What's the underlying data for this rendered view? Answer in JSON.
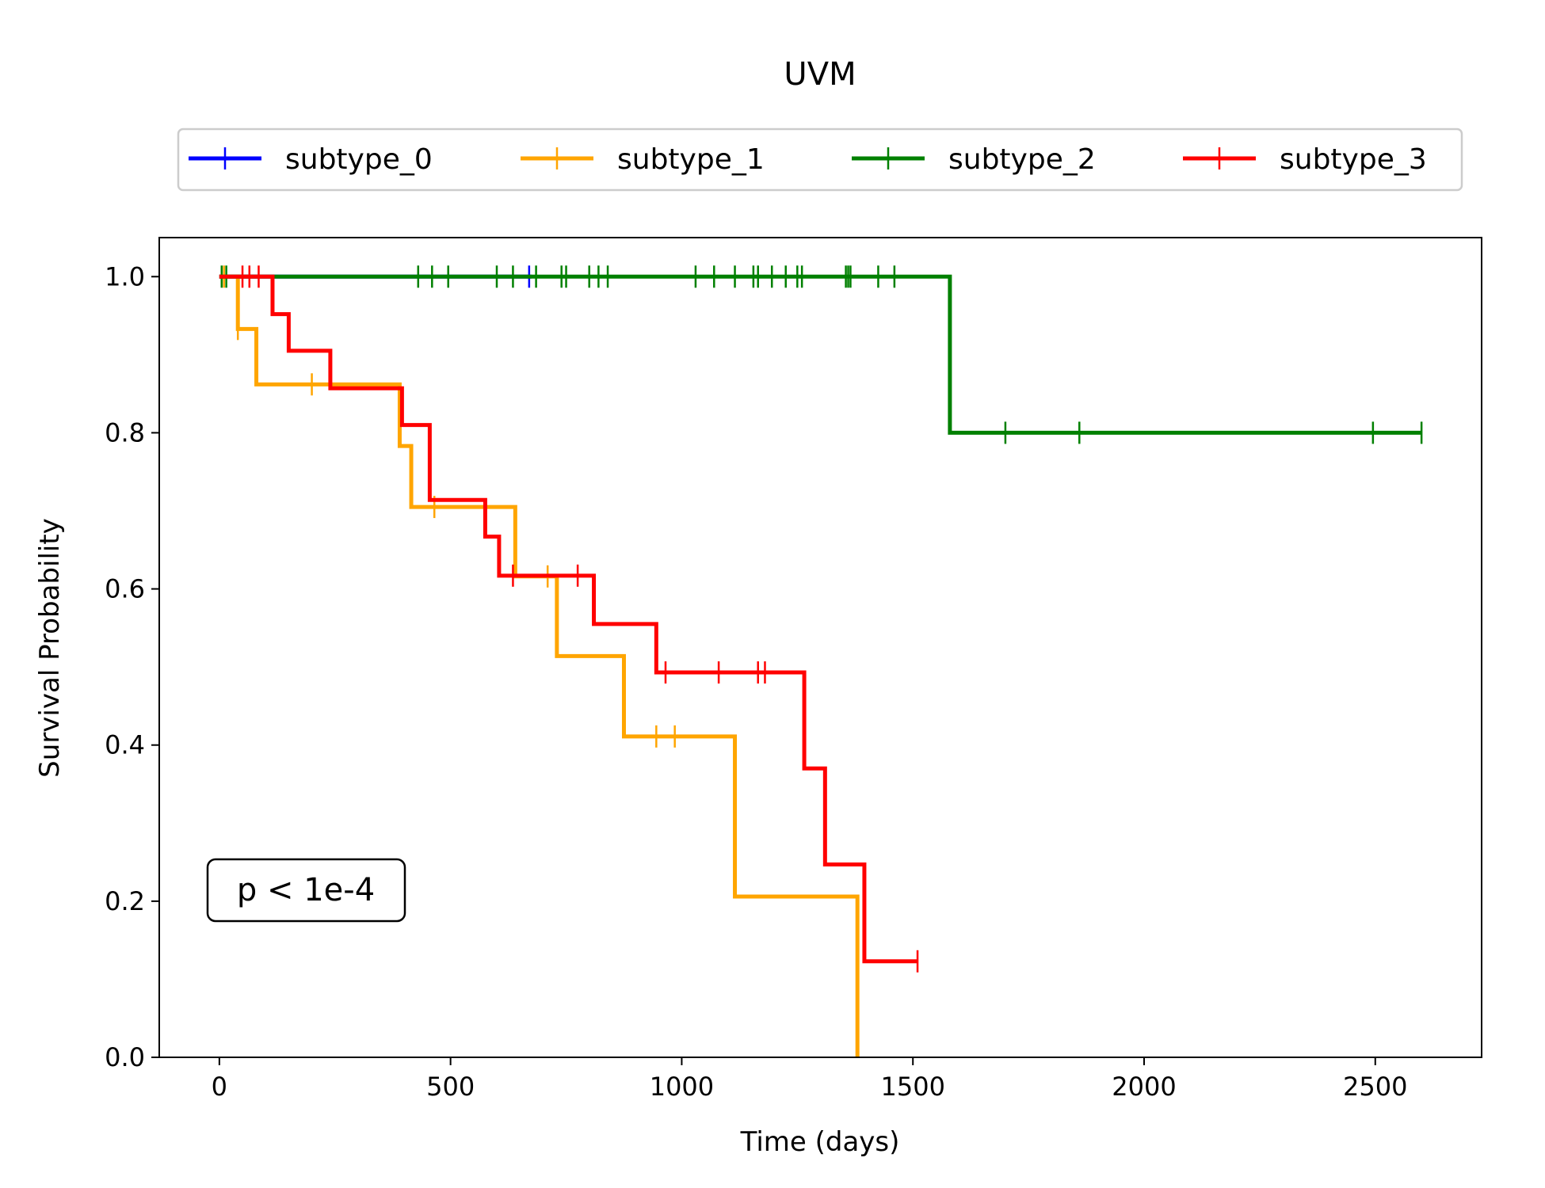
{
  "chart_data": {
    "type": "line",
    "subtype": "kaplan-meier step",
    "title": "UVM",
    "xlabel": "Time (days)",
    "ylabel": "Survival Probability",
    "xlim": [
      -130,
      2730
    ],
    "ylim": [
      0,
      1.05
    ],
    "xticks": [
      0,
      500,
      1000,
      1500,
      2000,
      2500
    ],
    "yticks": [
      0.0,
      0.2,
      0.4,
      0.6,
      0.8,
      1.0
    ],
    "xtick_labels": [
      "0",
      "500",
      "1000",
      "1500",
      "2000",
      "2500"
    ],
    "ytick_labels": [
      "0.0",
      "0.2",
      "0.4",
      "0.6",
      "0.8",
      "1.0"
    ],
    "grid": false,
    "legend_position": "top-center",
    "annotation": "p < 1e-4",
    "series": [
      {
        "name": "subtype_0",
        "color": "#0000ff",
        "steps": [
          [
            0,
            1.0
          ],
          [
            675,
            1.0
          ]
        ],
        "censored": [
          [
            670,
            1.0
          ]
        ]
      },
      {
        "name": "subtype_1",
        "color": "#ffa500",
        "steps": [
          [
            0,
            1.0
          ],
          [
            40,
            0.933
          ],
          [
            80,
            0.862
          ],
          [
            390,
            0.783
          ],
          [
            415,
            0.705
          ],
          [
            640,
            0.616
          ],
          [
            730,
            0.514
          ],
          [
            875,
            0.411
          ],
          [
            1115,
            0.206
          ],
          [
            1380,
            0.0
          ]
        ],
        "censored": [
          [
            10,
            1.0
          ],
          [
            40,
            0.933
          ],
          [
            200,
            0.862
          ],
          [
            465,
            0.705
          ],
          [
            710,
            0.616
          ],
          [
            945,
            0.411
          ],
          [
            985,
            0.411
          ]
        ]
      },
      {
        "name": "subtype_2",
        "color": "#008000",
        "steps": [
          [
            0,
            1.0
          ],
          [
            1580,
            0.8
          ],
          [
            2600,
            0.8
          ]
        ],
        "censored": [
          [
            5,
            1.0
          ],
          [
            15,
            1.0
          ],
          [
            430,
            1.0
          ],
          [
            460,
            1.0
          ],
          [
            495,
            1.0
          ],
          [
            600,
            1.0
          ],
          [
            635,
            1.0
          ],
          [
            685,
            1.0
          ],
          [
            740,
            1.0
          ],
          [
            750,
            1.0
          ],
          [
            800,
            1.0
          ],
          [
            820,
            1.0
          ],
          [
            840,
            1.0
          ],
          [
            1030,
            1.0
          ],
          [
            1070,
            1.0
          ],
          [
            1115,
            1.0
          ],
          [
            1155,
            1.0
          ],
          [
            1165,
            1.0
          ],
          [
            1195,
            1.0
          ],
          [
            1225,
            1.0
          ],
          [
            1250,
            1.0
          ],
          [
            1260,
            1.0
          ],
          [
            1355,
            1.0
          ],
          [
            1360,
            1.0
          ],
          [
            1365,
            1.0
          ],
          [
            1425,
            1.0
          ],
          [
            1460,
            1.0
          ],
          [
            1700,
            0.8
          ],
          [
            1860,
            0.8
          ],
          [
            2495,
            0.8
          ],
          [
            2600,
            0.8
          ]
        ],
        "end_x": 2600
      },
      {
        "name": "subtype_3",
        "color": "#ff0000",
        "steps": [
          [
            0,
            1.0
          ],
          [
            115,
            0.952
          ],
          [
            150,
            0.905
          ],
          [
            240,
            0.857
          ],
          [
            395,
            0.81
          ],
          [
            455,
            0.714
          ],
          [
            575,
            0.667
          ],
          [
            605,
            0.617
          ],
          [
            810,
            0.555
          ],
          [
            945,
            0.493
          ],
          [
            1265,
            0.37
          ],
          [
            1310,
            0.247
          ],
          [
            1395,
            0.123
          ],
          [
            1510,
            0.123
          ]
        ],
        "censored": [
          [
            50,
            1.0
          ],
          [
            65,
            1.0
          ],
          [
            85,
            1.0
          ],
          [
            635,
            0.617
          ],
          [
            775,
            0.617
          ],
          [
            965,
            0.493
          ],
          [
            1080,
            0.493
          ],
          [
            1165,
            0.493
          ],
          [
            1180,
            0.493
          ],
          [
            1510,
            0.123
          ]
        ],
        "end_x": 1510
      }
    ]
  }
}
